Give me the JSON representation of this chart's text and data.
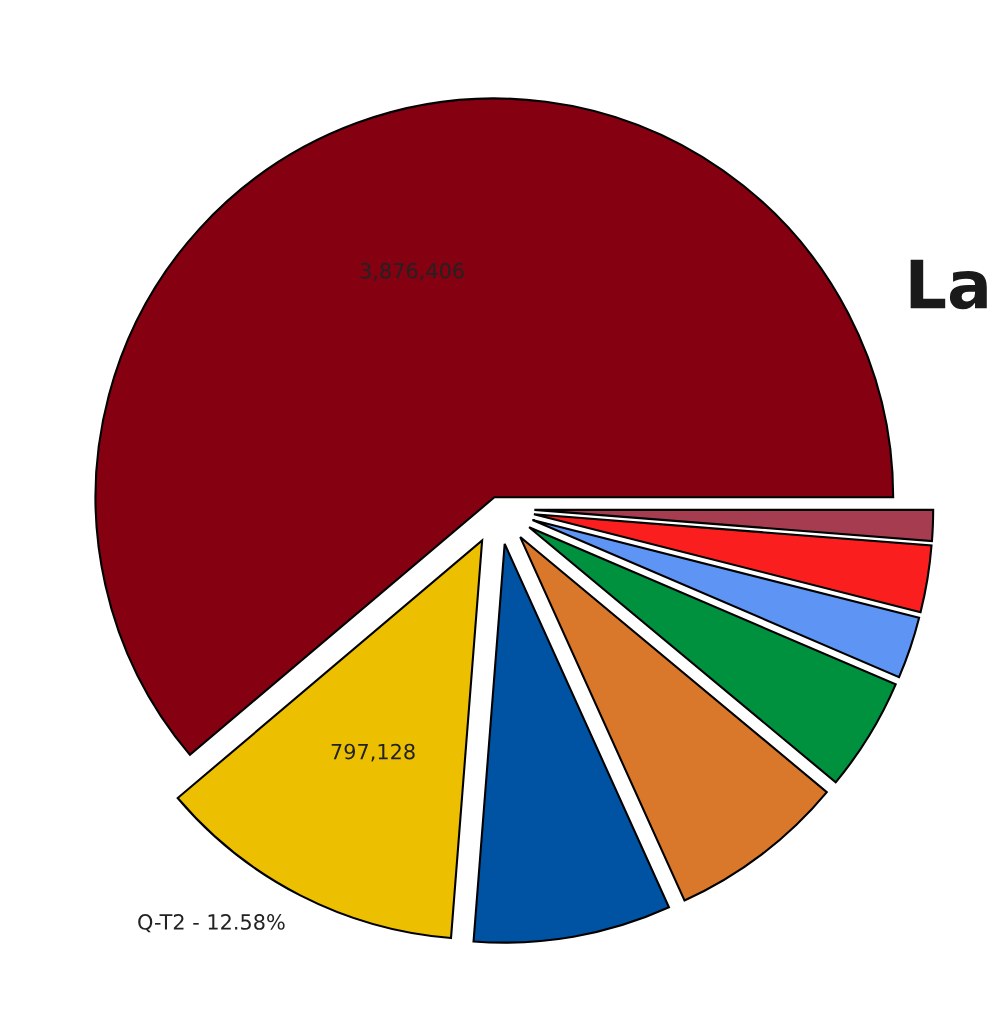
{
  "chart_data": {
    "type": "pie",
    "categories": [
      null,
      "Q-T2 - 12.58%",
      null,
      null,
      null,
      null,
      null,
      null
    ],
    "values": [
      3876406,
      797128,
      506918,
      456226,
      291478,
      158412,
      171085,
      78818
    ],
    "colors": [
      "#850010",
      "#ecc000",
      "#0053a3",
      "#d9772a",
      "#00913f",
      "#5e95f5",
      "#fa1e1e",
      "#a53c50"
    ],
    "value_labels": [
      "3,876,406",
      "797,128",
      null,
      null,
      null,
      null,
      null,
      null
    ],
    "annotations": [
      "La"
    ]
  }
}
